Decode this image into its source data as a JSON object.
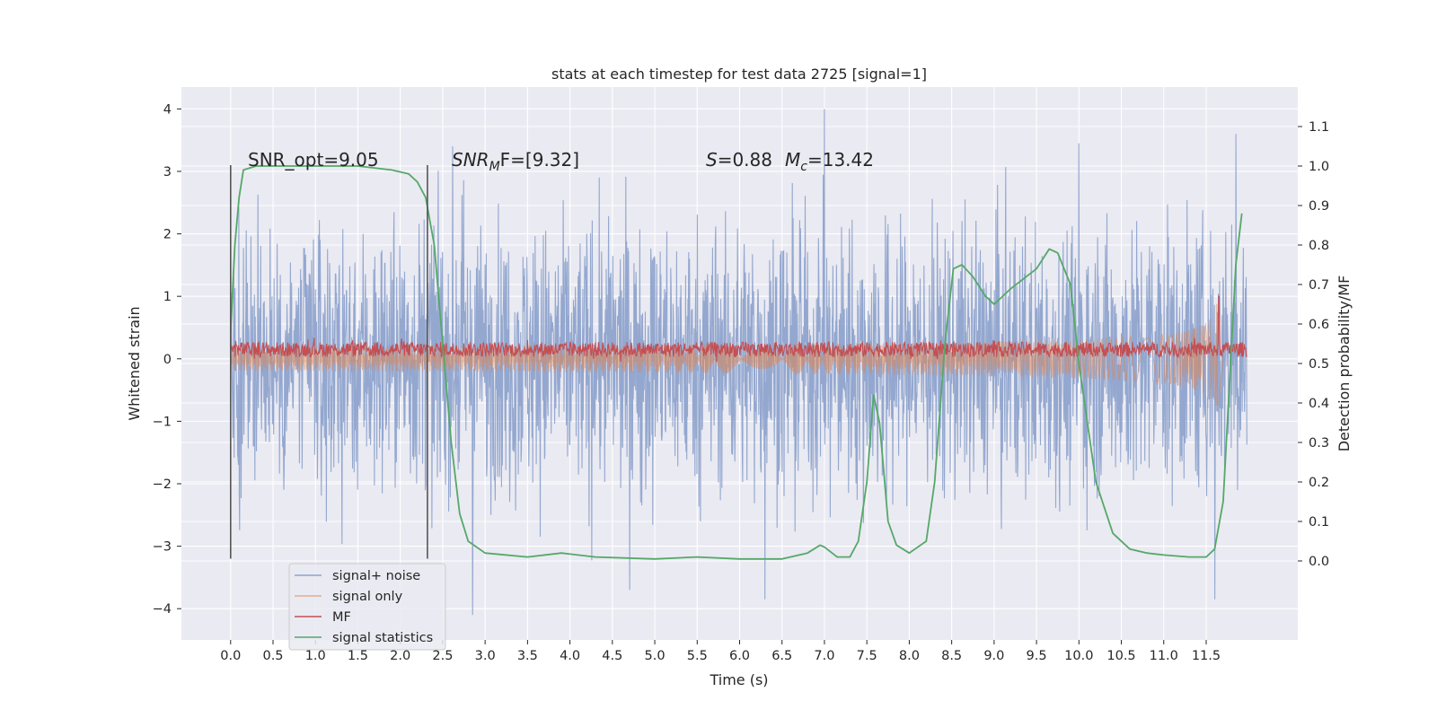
{
  "chart_data": {
    "type": "line",
    "title": "stats at each timestep for test data 2725 [signal=1]",
    "xlabel": "Time (s)",
    "ylabel": "Whitened strain",
    "y2label": "Detection probability/MF",
    "xlim": [
      -0.58,
      12.58
    ],
    "ylim": [
      -4.5,
      4.35
    ],
    "y2lim": [
      -0.2,
      1.2
    ],
    "xticks": [
      "0.0",
      "0.5",
      "1.0",
      "1.5",
      "2.0",
      "2.5",
      "3.0",
      "3.5",
      "4.0",
      "4.5",
      "5.0",
      "5.5",
      "6.0",
      "6.5",
      "7.0",
      "7.5",
      "8.0",
      "8.5",
      "9.0",
      "9.5",
      "10.0",
      "10.5",
      "11.0",
      "11.5"
    ],
    "yticks": [
      "4",
      "3",
      "2",
      "1",
      "0",
      "−1",
      "−2",
      "−3",
      "−4"
    ],
    "y2ticks": [
      "1.1",
      "1.0",
      "0.9",
      "0.8",
      "0.7",
      "0.6",
      "0.5",
      "0.4",
      "0.3",
      "0.2",
      "0.1",
      "0.0"
    ],
    "grid": true,
    "legend_position": "lower-left",
    "annotations": {
      "snr_opt": "SNR_opt=9.05",
      "snr_mf_main": "SNR",
      "snr_mf_sub": "M",
      "snr_mf_tail": "F=[9.32]",
      "s_main": "S",
      "s_value": "=0.88",
      "mc_main": "M",
      "mc_sub": "c",
      "mc_value": "=13.42"
    },
    "markers": {
      "vertical_lines": [
        0.0,
        2.32
      ],
      "range": [
        -3.2,
        3.1
      ]
    },
    "series": [
      {
        "name": "signal+ noise",
        "color": "#8ea3cc",
        "axis": "left",
        "style": "noise",
        "range": [
          0.0,
          11.98
        ],
        "typical_amplitude": 1.9,
        "extremes": [
          {
            "x": 7.0,
            "y": 4.0
          },
          {
            "x": 10.0,
            "y": 3.45
          },
          {
            "x": 11.85,
            "y": 3.6
          },
          {
            "x": 2.85,
            "y": -4.1
          },
          {
            "x": 6.3,
            "y": -3.85
          },
          {
            "x": 11.6,
            "y": -3.85
          }
        ]
      },
      {
        "name": "signal only",
        "color": "#dd8452",
        "axis": "left",
        "style": "chirp",
        "range": [
          0.0,
          11.7
        ],
        "peak_x": 11.65,
        "peak_amplitude": 1.75
      },
      {
        "name": "MF",
        "color": "#c44e52",
        "axis": "left",
        "style": "band",
        "range": [
          0.0,
          11.98
        ],
        "center": 0.15,
        "half_width": 0.12,
        "spike": {
          "x": 11.65,
          "y": 1.0
        }
      },
      {
        "name": "signal statistics",
        "color": "#55a868",
        "axis": "right",
        "x": [
          0.0,
          0.05,
          0.1,
          0.15,
          0.3,
          0.6,
          1.0,
          1.5,
          1.9,
          2.1,
          2.2,
          2.3,
          2.4,
          2.5,
          2.6,
          2.7,
          2.8,
          3.0,
          3.5,
          3.9,
          4.3,
          5.0,
          5.5,
          6.0,
          6.5,
          6.8,
          6.95,
          7.0,
          7.15,
          7.3,
          7.4,
          7.5,
          7.58,
          7.65,
          7.75,
          7.85,
          8.0,
          8.2,
          8.3,
          8.42,
          8.52,
          8.62,
          8.75,
          8.9,
          9.0,
          9.2,
          9.5,
          9.65,
          9.75,
          9.9,
          10.0,
          10.2,
          10.4,
          10.6,
          10.8,
          11.0,
          11.3,
          11.5,
          11.6,
          11.7,
          11.85,
          11.92
        ],
        "y": [
          0.58,
          0.8,
          0.92,
          0.99,
          1.0,
          1.0,
          1.0,
          1.0,
          0.99,
          0.98,
          0.96,
          0.92,
          0.8,
          0.55,
          0.3,
          0.12,
          0.05,
          0.02,
          0.01,
          0.02,
          0.01,
          0.005,
          0.01,
          0.005,
          0.005,
          0.02,
          0.04,
          0.035,
          0.01,
          0.01,
          0.05,
          0.2,
          0.42,
          0.35,
          0.1,
          0.04,
          0.02,
          0.05,
          0.2,
          0.55,
          0.74,
          0.75,
          0.72,
          0.67,
          0.65,
          0.69,
          0.74,
          0.79,
          0.78,
          0.7,
          0.5,
          0.2,
          0.07,
          0.03,
          0.02,
          0.015,
          0.01,
          0.01,
          0.03,
          0.15,
          0.75,
          0.88
        ]
      }
    ]
  }
}
